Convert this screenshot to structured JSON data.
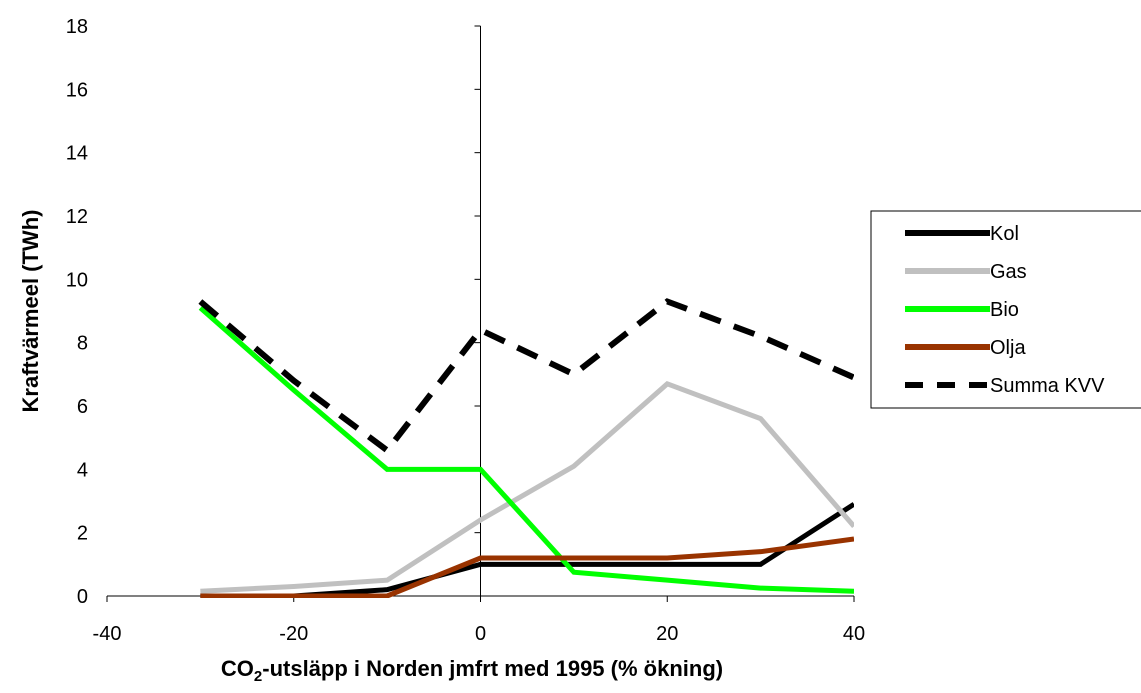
{
  "chart_data": {
    "type": "line",
    "xlabel_main": "CO",
    "xlabel_sub": "2",
    "xlabel_rest": "-utsläpp i Norden jmfrt med 1995 (% ökning)",
    "ylabel": "Kraftvärmeel (TWh)",
    "xlim": [
      -40,
      40
    ],
    "ylim": [
      0,
      18
    ],
    "xticks": [
      "-40",
      "-20",
      "0",
      "20",
      "40"
    ],
    "yticks": [
      "0",
      "2",
      "4",
      "6",
      "8",
      "10",
      "12",
      "14",
      "16",
      "18"
    ],
    "x": [
      -30,
      -20,
      -10,
      0,
      10,
      20,
      30,
      40
    ],
    "legend_position": "right",
    "series": [
      {
        "name": "Kol",
        "color": "#000000",
        "dashed": false,
        "values": [
          0.0,
          0.0,
          0.2,
          1.0,
          1.0,
          1.0,
          1.0,
          2.9
        ]
      },
      {
        "name": "Gas",
        "color": "#c0c0c0",
        "dashed": false,
        "values": [
          0.15,
          0.3,
          0.5,
          2.4,
          4.1,
          6.7,
          5.6,
          2.2
        ]
      },
      {
        "name": "Bio",
        "color": "#00ff00",
        "dashed": false,
        "values": [
          9.1,
          6.5,
          4.0,
          4.0,
          0.75,
          0.5,
          0.25,
          0.15
        ]
      },
      {
        "name": "Olja",
        "color": "#993300",
        "dashed": false,
        "values": [
          0.0,
          0.0,
          0.0,
          1.2,
          1.2,
          1.2,
          1.4,
          1.8
        ]
      },
      {
        "name": "Summa KVV",
        "color": "#000000",
        "dashed": true,
        "values": [
          9.3,
          6.8,
          4.6,
          8.4,
          7.0,
          9.3,
          8.2,
          6.9
        ]
      }
    ]
  }
}
